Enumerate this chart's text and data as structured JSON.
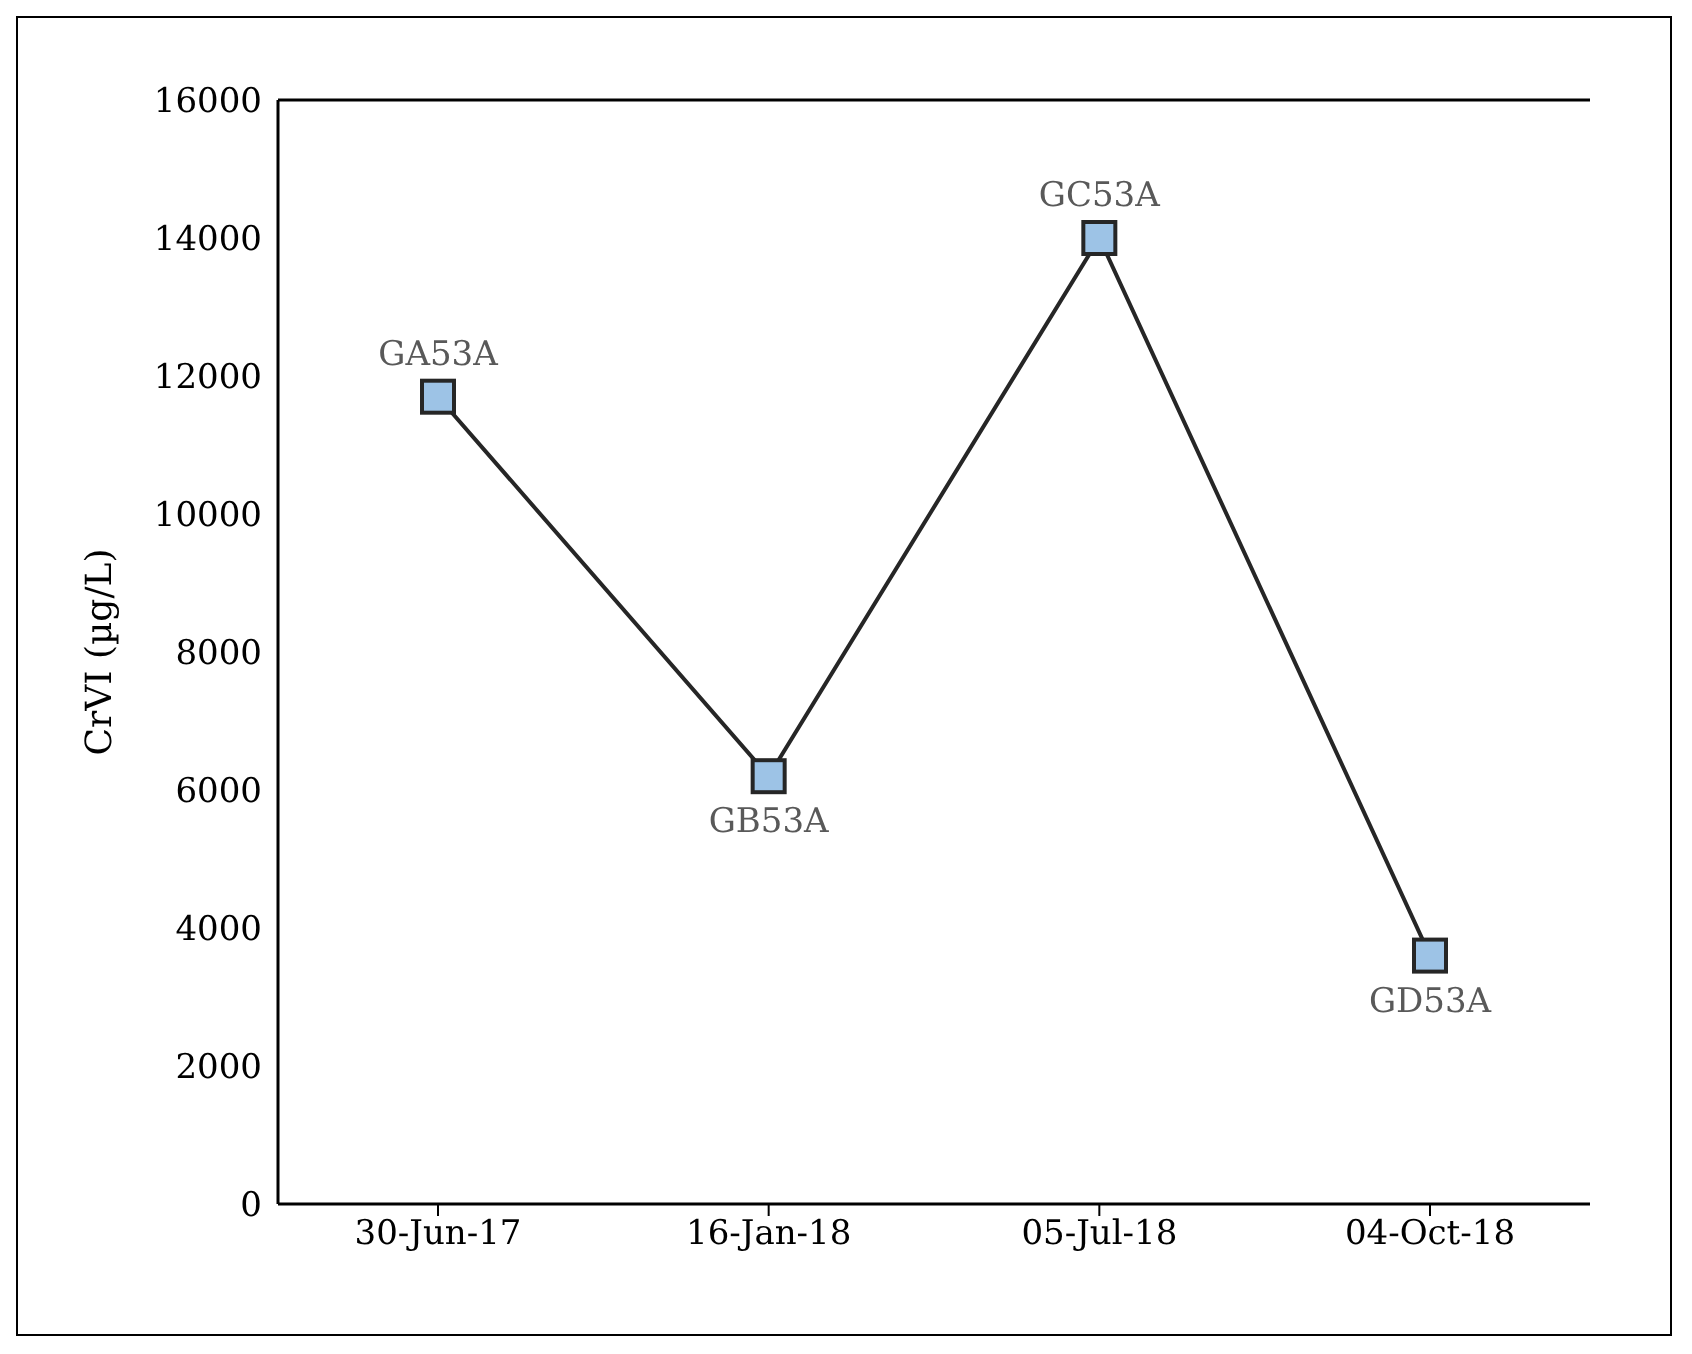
{
  "chart_data": {
    "type": "line",
    "ylabel": "CrVI (µg/L)",
    "categories": [
      "30-Jun-17",
      "16-Jan-18",
      "05-Jul-18",
      "04-Oct-18"
    ],
    "series": [
      {
        "color": "#262626",
        "values": [
          11700,
          6200,
          14000,
          3600
        ]
      }
    ],
    "ylim": [
      0,
      16000
    ],
    "yticks": [
      0,
      2000,
      4000,
      6000,
      8000,
      10000,
      12000,
      14000,
      16000
    ],
    "marker": "square",
    "line_style": "solid",
    "grid": false,
    "legend": false,
    "annotations": [
      {
        "text": "GA53A",
        "x": "30-Jun-17",
        "y": 11700
      },
      {
        "text": "GB53A",
        "x": "16-Jan-18",
        "y": 6200
      },
      {
        "text": "GC53A",
        "x": "05-Jul-18",
        "y": 14000
      },
      {
        "text": "GD53A",
        "x": "04-Oct-18",
        "y": 3600
      }
    ]
  }
}
